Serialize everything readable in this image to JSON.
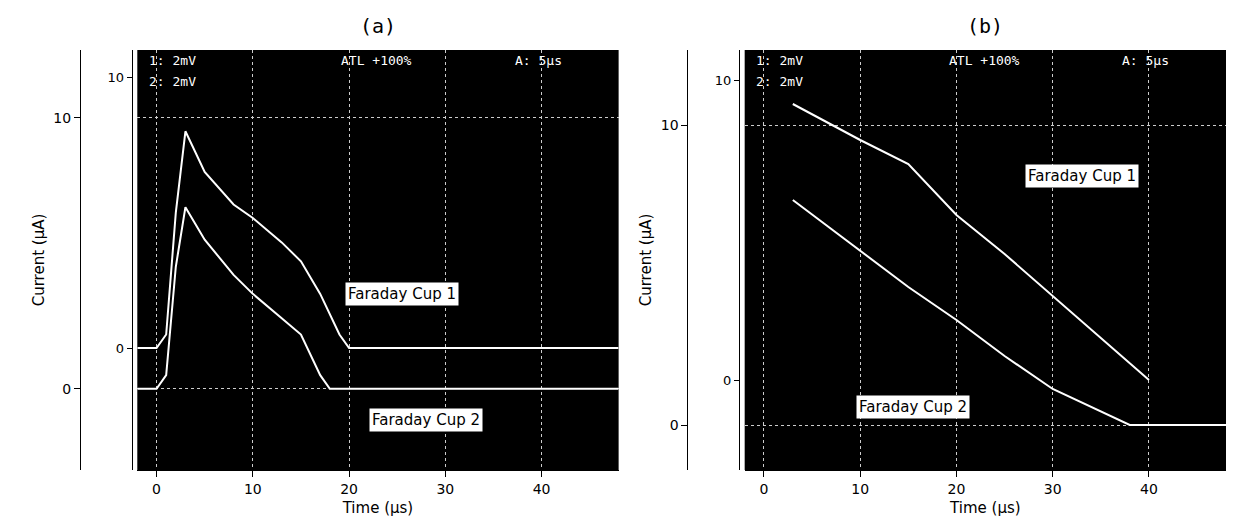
{
  "chart_data": [
    {
      "type": "line",
      "title": "(a)",
      "x_label": "Time (μs)",
      "y_label": "Current (μA)",
      "annotations": [
        "1: 2mV",
        "2: 2mV",
        "ATL +100%",
        "A: 5μs"
      ],
      "xlim": [
        -2,
        48
      ],
      "xticks": [
        0,
        10,
        20,
        30,
        40
      ],
      "ylim": [
        -3,
        12.5
      ],
      "yticks": [
        0,
        10
      ],
      "y2lim": [
        -4.5,
        11
      ],
      "y2ticks": [
        0,
        10
      ],
      "grid": true,
      "series": [
        {
          "name": "Faraday Cup 1",
          "color": "#ffffff",
          "axis": "y2",
          "x": [
            -2,
            0,
            1,
            2,
            3,
            5,
            8,
            10,
            13,
            15,
            17,
            19,
            20,
            25,
            30,
            35,
            40,
            45,
            48
          ],
          "values": [
            0,
            0,
            0.5,
            5,
            8,
            6.5,
            5.3,
            4.8,
            3.9,
            3.2,
            2,
            0.5,
            0,
            0,
            0,
            0,
            0,
            0,
            0
          ]
        },
        {
          "name": "Faraday Cup 2",
          "color": "#ffffff",
          "axis": "y",
          "x": [
            -2,
            0,
            1,
            2,
            3,
            5,
            8,
            10,
            13,
            15,
            17,
            18,
            20,
            25,
            30,
            35,
            40,
            45,
            48
          ],
          "values": [
            0,
            0,
            0.5,
            4.5,
            6.7,
            5.5,
            4.2,
            3.5,
            2.6,
            2,
            0.5,
            0,
            0,
            0,
            0,
            0,
            0,
            0,
            0
          ]
        }
      ]
    },
    {
      "type": "line",
      "title": "(b)",
      "x_label": "Time (μs)",
      "y_label": "Current (μA)",
      "annotations": [
        "1: 2mV",
        "2: 2mV",
        "ATL +100%",
        "A: 5μs"
      ],
      "xlim": [
        -2,
        48
      ],
      "xticks": [
        0,
        10,
        20,
        30,
        40
      ],
      "ylim": [
        -1.5,
        12.5
      ],
      "yticks": [
        0,
        10
      ],
      "y2lim": [
        -3,
        11
      ],
      "y2ticks": [
        0,
        10
      ],
      "grid": true,
      "series": [
        {
          "name": "Faraday Cup 1",
          "color": "#ffffff",
          "axis": "y2",
          "x": [
            3,
            10,
            15,
            20,
            25,
            30,
            35,
            40
          ],
          "values": [
            9.2,
            8,
            7.2,
            5.5,
            4.2,
            2.8,
            1.4,
            0
          ]
        },
        {
          "name": "Faraday Cup 2",
          "color": "#ffffff",
          "axis": "y",
          "x": [
            3,
            10,
            15,
            20,
            25,
            30,
            34,
            38,
            42,
            48
          ],
          "values": [
            7.5,
            5.8,
            4.6,
            3.5,
            2.3,
            1.2,
            0.6,
            0,
            0,
            0
          ]
        }
      ]
    }
  ]
}
